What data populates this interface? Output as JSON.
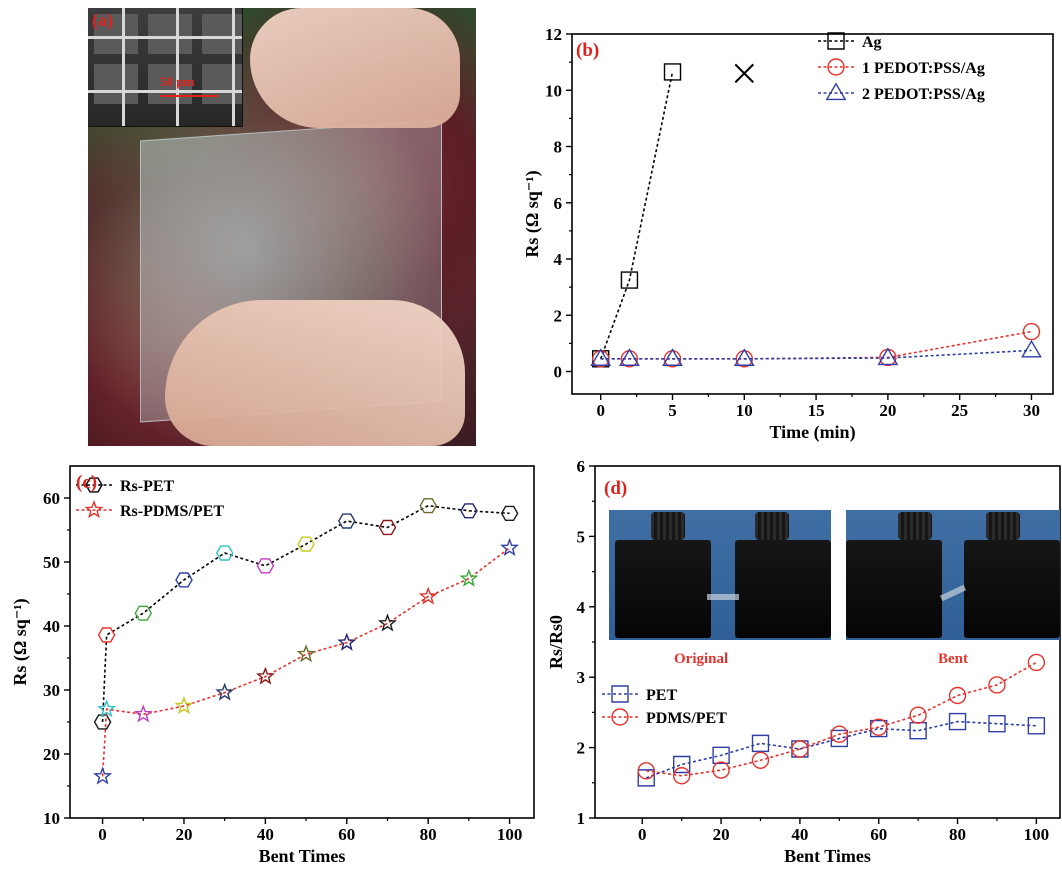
{
  "panels": {
    "a": {
      "label": "(a)",
      "scale_label": "50 μm"
    },
    "b": {
      "label": "(b)"
    },
    "c": {
      "label": "(c)"
    },
    "d": {
      "label": "(d)",
      "photo_labels": [
        "Original",
        "Bent"
      ]
    }
  },
  "colors": {
    "panel_label": "#e0201c",
    "ag": "#000000",
    "pedot1": "#e8322d",
    "pedot2": "#2f3fa8",
    "pet_line": "#000000",
    "pdms_line": "#e8322d",
    "d_pet": "#2f3fa8",
    "d_pdms": "#e8322d",
    "c_marker_cycle": [
      "#1a1a1a",
      "#e8322d",
      "#3aa83a",
      "#2f3fa8",
      "#2fc4c8",
      "#c23ac2",
      "#c8c822",
      "#2a3a6a",
      "#8a1a1a",
      "#6a6a2a",
      "#222277"
    ]
  },
  "chart_data": [
    {
      "panel": "b",
      "type": "line",
      "title": "",
      "xlabel": "Time (min)",
      "ylabel": "Rs (Ω sq⁻¹)",
      "xlim": [
        -2,
        31.5
      ],
      "ylim": [
        -0.8,
        12
      ],
      "xticks": [
        0,
        5,
        10,
        15,
        20,
        25,
        30
      ],
      "yticks": [
        0,
        2,
        4,
        6,
        8,
        10,
        12
      ],
      "legend_position": "top-right",
      "series": [
        {
          "name": "Ag",
          "marker": "square",
          "color": "#000000",
          "x": [
            0,
            2,
            5
          ],
          "y": [
            0.45,
            3.25,
            10.65
          ]
        },
        {
          "name": "1 PEDOT:PSS/Ag",
          "marker": "circle",
          "color": "#e8322d",
          "x": [
            0,
            2,
            5,
            10,
            20,
            30
          ],
          "y": [
            0.45,
            0.45,
            0.45,
            0.45,
            0.5,
            1.42
          ]
        },
        {
          "name": "2 PEDOT:PSS/Ag",
          "marker": "triangle",
          "color": "#2f3fa8",
          "x": [
            0,
            2,
            5,
            10,
            20,
            30
          ],
          "y": [
            0.45,
            0.45,
            0.45,
            0.45,
            0.48,
            0.75
          ]
        }
      ],
      "annotations": [
        {
          "type": "cross",
          "x": 10,
          "y": 10.6
        }
      ]
    },
    {
      "panel": "c",
      "type": "line",
      "title": "",
      "xlabel": "Bent Times",
      "ylabel": "Rs (Ω sq⁻¹)",
      "xlim": [
        -8,
        106
      ],
      "ylim": [
        10,
        65
      ],
      "xticks": [
        0,
        20,
        40,
        60,
        80,
        100
      ],
      "yticks": [
        10,
        20,
        30,
        40,
        50,
        60
      ],
      "legend_position": "top-left",
      "series": [
        {
          "name": "Rs-PET",
          "marker": "hexagon",
          "color": "#000000",
          "x": [
            0,
            1,
            10,
            20,
            30,
            40,
            50,
            60,
            70,
            80,
            90,
            100
          ],
          "y": [
            25,
            38.6,
            42,
            47.2,
            51.4,
            49.4,
            52.8,
            56.4,
            55.4,
            58.8,
            58,
            57.6
          ]
        },
        {
          "name": "Rs-PDMS/PET",
          "marker": "star",
          "color": "#e8322d",
          "x": [
            0,
            1,
            10,
            20,
            30,
            40,
            50,
            60,
            70,
            80,
            90,
            100
          ],
          "y": [
            16.5,
            27,
            26.2,
            27.5,
            29.6,
            32.1,
            35.6,
            37.4,
            40.4,
            44.6,
            47.4,
            52.2
          ]
        }
      ]
    },
    {
      "panel": "d",
      "type": "line",
      "title": "",
      "xlabel": "Bent Times",
      "ylabel": "Rs/Rs0",
      "xlim": [
        -12,
        106
      ],
      "ylim": [
        1,
        6
      ],
      "xticks": [
        0,
        20,
        40,
        60,
        80,
        100
      ],
      "yticks": [
        1,
        2,
        3,
        4,
        5,
        6
      ],
      "legend_position": "middle-left",
      "series": [
        {
          "name": "PET",
          "marker": "square",
          "color": "#2f3fa8",
          "x": [
            1,
            10,
            20,
            30,
            40,
            50,
            60,
            70,
            80,
            90,
            100
          ],
          "y": [
            1.57,
            1.76,
            1.89,
            2.06,
            1.98,
            2.13,
            2.27,
            2.24,
            2.37,
            2.34,
            2.31
          ]
        },
        {
          "name": "PDMS/PET",
          "marker": "circle",
          "color": "#e8322d",
          "x": [
            1,
            10,
            20,
            30,
            40,
            50,
            60,
            70,
            80,
            90,
            100
          ],
          "y": [
            1.67,
            1.6,
            1.68,
            1.82,
            1.98,
            2.19,
            2.29,
            2.46,
            2.74,
            2.89,
            3.21
          ]
        }
      ]
    }
  ]
}
